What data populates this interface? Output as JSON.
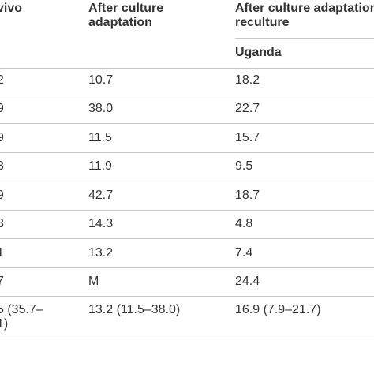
{
  "headers": {
    "col1": "vivo",
    "col2": "After culture adaptation",
    "col3": "After culture adaptation reculture",
    "col3_sub": "Uganda"
  },
  "rows": [
    {
      "c1": "2",
      "c2": "10.7",
      "c3": "18.2"
    },
    {
      "c1": "9",
      "c2": "38.0",
      "c3": "22.7"
    },
    {
      "c1": "9",
      "c2": "11.5",
      "c3": "15.7"
    },
    {
      "c1": "3",
      "c2": "11.9",
      "c3": "9.5"
    },
    {
      "c1": "9",
      "c2": "42.7",
      "c3": "18.7"
    },
    {
      "c1": "3",
      "c2": "14.3",
      "c3": "4.8"
    },
    {
      "c1": "1",
      "c2": "13.2",
      "c3": "7.4"
    },
    {
      "c1": "7",
      "c2": "M",
      "c3": "24.4"
    }
  ],
  "summary": {
    "c1_line1": "5 (35.7–",
    "c1_line2": "1)",
    "c2": "13.2 (11.5–38.0)",
    "c3": "16.9 (7.9–21.7)"
  }
}
